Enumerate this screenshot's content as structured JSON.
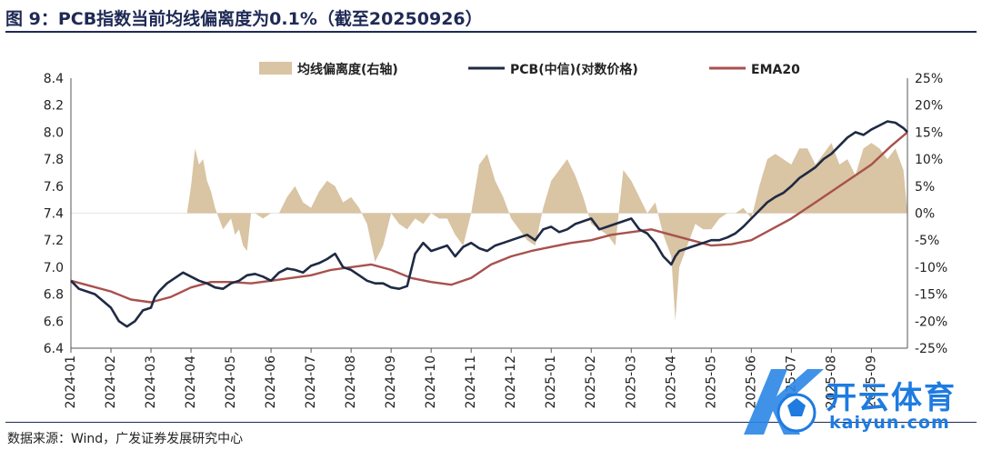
{
  "title": "图 9：PCB指数当前均线偏离度为0.1%（截至20250926）",
  "source": "数据来源：Wind，广发证券发展研究中心",
  "watermark": {
    "brand": "开云体育",
    "site": "kaiyun.com"
  },
  "colors": {
    "pcb": "#1f2a44",
    "ema": "#a8514d",
    "deviation": "#d9c4a3",
    "title": "#1f2a55",
    "watermark": "#1e7be0"
  },
  "chart_data": {
    "type": "line",
    "title": "",
    "legend": [
      "均线偏离度(右轴)",
      "PCB(中信)(对数价格)",
      "EMA20"
    ],
    "left_axis": {
      "min": 6.4,
      "max": 8.4,
      "ticks": [
        "6.4",
        "6.6",
        "6.8",
        "7.0",
        "7.2",
        "7.4",
        "7.6",
        "7.8",
        "8.0",
        "8.2",
        "8.4"
      ]
    },
    "right_axis": {
      "min": -25,
      "max": 25,
      "ticks": [
        "-25%",
        "-20%",
        "-15%",
        "-10%",
        "-5%",
        "0%",
        "5%",
        "10%",
        "15%",
        "20%",
        "25%"
      ]
    },
    "x_ticks": [
      "2024-01",
      "2024-02",
      "2024-03",
      "2024-04",
      "2024-05",
      "2024-06",
      "2024-07",
      "2024-08",
      "2024-09",
      "2024-10",
      "2024-11",
      "2024-12",
      "2025-01",
      "2025-02",
      "2025-03",
      "2025-04",
      "2025-05",
      "2025-06",
      "2025-07",
      "2025-08",
      "2025-09"
    ],
    "x_range": [
      0,
      20.9
    ],
    "series": [
      {
        "name": "PCB(中信)(对数价格)",
        "axis": "left",
        "x": [
          0,
          0.2,
          0.4,
          0.6,
          0.8,
          1.0,
          1.2,
          1.4,
          1.6,
          1.8,
          2.0,
          2.05,
          2.1,
          2.2,
          2.4,
          2.6,
          2.8,
          3.0,
          3.2,
          3.4,
          3.6,
          3.8,
          4.0,
          4.2,
          4.4,
          4.6,
          4.8,
          5.0,
          5.2,
          5.4,
          5.6,
          5.8,
          6.0,
          6.2,
          6.4,
          6.6,
          6.8,
          7.0,
          7.2,
          7.4,
          7.6,
          7.8,
          8.0,
          8.2,
          8.4,
          8.6,
          8.8,
          9.0,
          9.2,
          9.4,
          9.6,
          9.8,
          10.0,
          10.2,
          10.4,
          10.6,
          10.8,
          11.0,
          11.2,
          11.4,
          11.6,
          11.8,
          12.0,
          12.2,
          12.4,
          12.6,
          12.8,
          13.0,
          13.2,
          13.4,
          13.6,
          13.8,
          14.0,
          14.2,
          14.4,
          14.6,
          14.8,
          15.0,
          15.1,
          15.2,
          15.4,
          15.6,
          15.8,
          16.0,
          16.2,
          16.4,
          16.6,
          16.8,
          17.0,
          17.2,
          17.4,
          17.6,
          17.8,
          18.0,
          18.2,
          18.4,
          18.6,
          18.8,
          19.0,
          19.2,
          19.4,
          19.6,
          19.8,
          20.0,
          20.2,
          20.4,
          20.6,
          20.8,
          20.9
        ],
        "y": [
          6.9,
          6.84,
          6.82,
          6.8,
          6.75,
          6.7,
          6.6,
          6.56,
          6.6,
          6.68,
          6.7,
          6.74,
          6.78,
          6.82,
          6.88,
          6.92,
          6.96,
          6.93,
          6.9,
          6.88,
          6.85,
          6.84,
          6.88,
          6.9,
          6.94,
          6.95,
          6.93,
          6.9,
          6.96,
          6.99,
          6.98,
          6.96,
          7.01,
          7.03,
          7.06,
          7.1,
          7.0,
          6.98,
          6.94,
          6.9,
          6.88,
          6.88,
          6.85,
          6.84,
          6.86,
          7.1,
          7.18,
          7.12,
          7.14,
          7.16,
          7.08,
          7.15,
          7.18,
          7.14,
          7.12,
          7.16,
          7.18,
          7.2,
          7.22,
          7.24,
          7.2,
          7.28,
          7.3,
          7.26,
          7.28,
          7.32,
          7.34,
          7.36,
          7.28,
          7.3,
          7.32,
          7.34,
          7.36,
          7.28,
          7.25,
          7.18,
          7.08,
          7.02,
          7.08,
          7.12,
          7.14,
          7.16,
          7.18,
          7.2,
          7.2,
          7.22,
          7.25,
          7.3,
          7.36,
          7.42,
          7.48,
          7.52,
          7.55,
          7.6,
          7.66,
          7.7,
          7.74,
          7.8,
          7.84,
          7.9,
          7.96,
          8.0,
          7.98,
          8.02,
          8.05,
          8.08,
          8.07,
          8.03,
          8.0
        ]
      },
      {
        "name": "EMA20",
        "axis": "left",
        "x": [
          0,
          0.5,
          1.0,
          1.5,
          2.0,
          2.5,
          3.0,
          3.5,
          4.0,
          4.5,
          5.0,
          5.5,
          6.0,
          6.5,
          7.0,
          7.5,
          8.0,
          8.5,
          9.0,
          9.5,
          10.0,
          10.5,
          11.0,
          11.5,
          12.0,
          12.5,
          13.0,
          13.5,
          14.0,
          14.5,
          15.0,
          15.5,
          16.0,
          16.5,
          17.0,
          17.5,
          18.0,
          18.5,
          19.0,
          19.5,
          20.0,
          20.5,
          20.9
        ],
        "y": [
          6.9,
          6.86,
          6.82,
          6.76,
          6.74,
          6.78,
          6.85,
          6.89,
          6.89,
          6.88,
          6.9,
          6.92,
          6.94,
          6.98,
          7.0,
          7.02,
          6.98,
          6.92,
          6.89,
          6.87,
          6.92,
          7.02,
          7.08,
          7.12,
          7.15,
          7.18,
          7.2,
          7.24,
          7.26,
          7.28,
          7.24,
          7.2,
          7.16,
          7.17,
          7.2,
          7.28,
          7.36,
          7.46,
          7.56,
          7.66,
          7.76,
          7.9,
          8.0
        ]
      },
      {
        "name": "均线偏离度(右轴)",
        "axis": "right",
        "type": "area",
        "x": [
          0,
          2.9,
          3.0,
          3.1,
          3.2,
          3.3,
          3.4,
          3.5,
          3.6,
          3.7,
          3.8,
          3.9,
          4.0,
          4.1,
          4.2,
          4.3,
          4.4,
          4.5,
          4.6,
          4.8,
          5.0,
          5.2,
          5.4,
          5.6,
          5.8,
          6.0,
          6.2,
          6.4,
          6.6,
          6.8,
          7.0,
          7.2,
          7.4,
          7.6,
          7.8,
          8.0,
          8.2,
          8.4,
          8.6,
          8.8,
          9.0,
          9.2,
          9.4,
          9.6,
          9.8,
          10.0,
          10.2,
          10.4,
          10.6,
          10.8,
          11.0,
          11.2,
          11.4,
          11.6,
          11.8,
          12.0,
          12.2,
          12.4,
          12.6,
          12.8,
          13.0,
          13.2,
          13.4,
          13.6,
          13.8,
          14.0,
          14.2,
          14.4,
          14.6,
          14.8,
          15.0,
          15.1,
          15.2,
          15.4,
          15.6,
          15.8,
          16.0,
          16.2,
          16.4,
          16.6,
          16.8,
          17.0,
          17.2,
          17.4,
          17.6,
          17.8,
          18.0,
          18.2,
          18.4,
          18.6,
          18.8,
          19.0,
          19.2,
          19.4,
          19.6,
          19.8,
          20.0,
          20.2,
          20.4,
          20.6,
          20.8,
          20.9
        ],
        "y": [
          0,
          0,
          5,
          12,
          9,
          10,
          6,
          4,
          1,
          -1,
          -3,
          -2,
          -1,
          -4,
          -3,
          -6,
          -7,
          0,
          0,
          -1,
          0,
          0,
          3,
          5,
          2,
          1,
          4,
          6,
          5,
          2,
          3,
          1,
          -2,
          -9,
          -6,
          0,
          -2,
          -3,
          -1,
          -2,
          0,
          -1,
          -1,
          -4,
          -6,
          0,
          9,
          11,
          6,
          3,
          -1,
          -3,
          -5,
          -6,
          1,
          6,
          8,
          10,
          7,
          3,
          -2,
          -3,
          -4,
          -6,
          8,
          6,
          3,
          0,
          2,
          -4,
          -8,
          -20,
          -10,
          -6,
          -2,
          -3,
          -3,
          -1,
          0,
          0,
          1,
          -1,
          5,
          10,
          11,
          10,
          9,
          12,
          12,
          9,
          11,
          13,
          9,
          10,
          7,
          12,
          13,
          12,
          10,
          12,
          8,
          0.1
        ]
      }
    ]
  }
}
